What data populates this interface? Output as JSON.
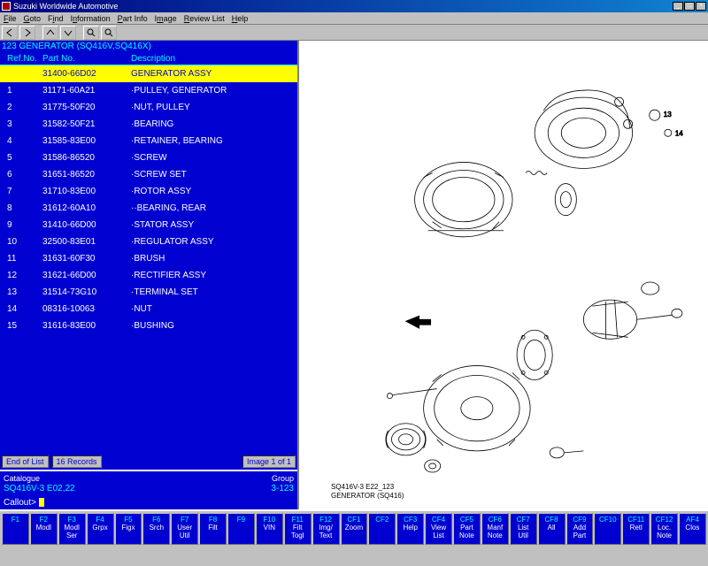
{
  "window": {
    "title": "Suzuki Worldwide Automotive"
  },
  "menu": [
    "File",
    "Goto",
    "Find",
    "Information",
    "Part Info",
    "Image",
    "Review List",
    "Help"
  ],
  "header": "123 GENERATOR (SQ416V,SQ416X)",
  "columns": {
    "ref": "Ref.No.",
    "pn": "Part No.",
    "desc": "Description"
  },
  "parts": [
    {
      "ref": "",
      "pn": "31400-66D02",
      "desc": "GENERATOR ASSY",
      "sel": true
    },
    {
      "ref": "1",
      "pn": "31171-60A21",
      "desc": "·PULLEY, GENERATOR"
    },
    {
      "ref": "2",
      "pn": "31775-50F20",
      "desc": "·NUT, PULLEY"
    },
    {
      "ref": "3",
      "pn": "31582-50F21",
      "desc": "·BEARING"
    },
    {
      "ref": "4",
      "pn": "31585-83E00",
      "desc": "·RETAINER, BEARING"
    },
    {
      "ref": "5",
      "pn": "31586-86520",
      "desc": "·SCREW"
    },
    {
      "ref": "6",
      "pn": "31651-86520",
      "desc": "·SCREW SET"
    },
    {
      "ref": "7",
      "pn": "31710-83E00",
      "desc": "·ROTOR ASSY"
    },
    {
      "ref": "8",
      "pn": "31612-60A10",
      "desc": "··BEARING, REAR"
    },
    {
      "ref": "9",
      "pn": "31410-66D00",
      "desc": "·STATOR ASSY"
    },
    {
      "ref": "10",
      "pn": "32500-83E01",
      "desc": "·REGULATOR ASSY"
    },
    {
      "ref": "11",
      "pn": "31631-60F30",
      "desc": "·BRUSH"
    },
    {
      "ref": "12",
      "pn": "31621-66D00",
      "desc": "·RECTIFIER ASSY"
    },
    {
      "ref": "13",
      "pn": "31514-73G10",
      "desc": "·TERMINAL SET"
    },
    {
      "ref": "14",
      "pn": "08316-10063",
      "desc": "·NUT"
    },
    {
      "ref": "15",
      "pn": "31616-83E00",
      "desc": "·BUSHING"
    }
  ],
  "status": {
    "end": "End of List",
    "count": "16 Records",
    "img": "Image 1 of 1"
  },
  "catalogue": {
    "lbl": "Catalogue",
    "val": "SQ416V-3 E02,22",
    "grp_lbl": "Group",
    "grp_val": "3-123"
  },
  "callout": "Callout>",
  "diagram": {
    "caption1": "SQ416V-3 E22_123",
    "caption2": "GENERATOR (SQ416)"
  },
  "fkeys": [
    {
      "k": "F1",
      "t": ""
    },
    {
      "k": "F2",
      "t": "Modl"
    },
    {
      "k": "F3",
      "t": "Modl Ser"
    },
    {
      "k": "F4",
      "t": "Grpx"
    },
    {
      "k": "F5",
      "t": "Figx"
    },
    {
      "k": "F6",
      "t": "Srch"
    },
    {
      "k": "F7",
      "t": "User Util"
    },
    {
      "k": "F8",
      "t": "Filt"
    },
    {
      "k": "F9",
      "t": ""
    },
    {
      "k": "F10",
      "t": "VIN"
    },
    {
      "k": "F11",
      "t": "Filt Togl"
    },
    {
      "k": "F12",
      "t": "Img/ Text"
    },
    {
      "k": "CF1",
      "t": "Zoom"
    },
    {
      "k": "CF2",
      "t": ""
    },
    {
      "k": "CF3",
      "t": "Help"
    },
    {
      "k": "CF4",
      "t": "View List"
    },
    {
      "k": "CF5",
      "t": "Part Note"
    },
    {
      "k": "CF6",
      "t": "Manf Note"
    },
    {
      "k": "CF7",
      "t": "List Util"
    },
    {
      "k": "CF8",
      "t": "All"
    },
    {
      "k": "CF9",
      "t": "Add Part"
    },
    {
      "k": "CF10",
      "t": ""
    },
    {
      "k": "CF11",
      "t": "Retl"
    },
    {
      "k": "CF12",
      "t": "Loc. Note"
    },
    {
      "k": "AF4",
      "t": "Clos"
    }
  ]
}
